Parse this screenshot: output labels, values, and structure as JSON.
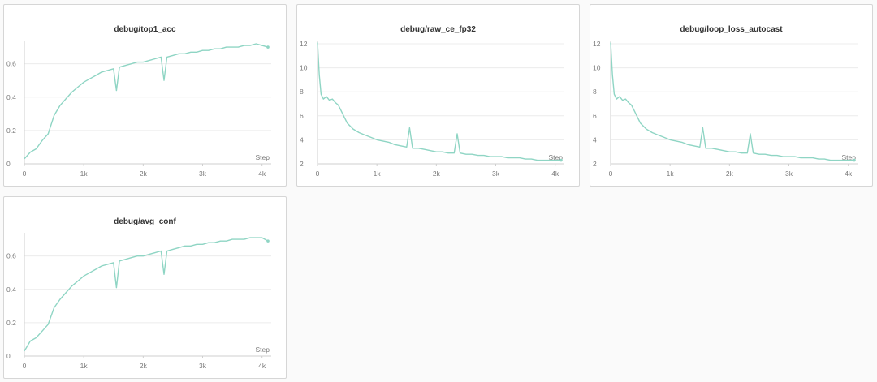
{
  "colors": {
    "series": "#8fd5c4",
    "grid": "#ececec",
    "axis": "#cfcfcf"
  },
  "chart_data": [
    {
      "type": "line",
      "title": "debug/top1_acc",
      "xlabel": "Step",
      "ylabel": "",
      "xlim": [
        0,
        4100
      ],
      "ylim": [
        0,
        0.72
      ],
      "xticks": [
        0,
        1000,
        2000,
        3000,
        4000
      ],
      "xtick_labels": [
        "0",
        "1k",
        "2k",
        "3k",
        "4k"
      ],
      "yticks": [
        0,
        0.2,
        0.4,
        0.6
      ],
      "ytick_labels": [
        "0",
        "0.2",
        "0.4",
        "0.6"
      ],
      "grid": true,
      "series": [
        {
          "x": [
            0,
            100,
            200,
            300,
            400,
            500,
            600,
            700,
            800,
            900,
            1000,
            1100,
            1200,
            1300,
            1400,
            1500,
            1550,
            1600,
            1700,
            1800,
            1900,
            2000,
            2100,
            2200,
            2300,
            2350,
            2400,
            2500,
            2600,
            2700,
            2800,
            2900,
            3000,
            3100,
            3200,
            3300,
            3400,
            3500,
            3600,
            3700,
            3800,
            3900,
            4000,
            4100
          ],
          "y": [
            0.03,
            0.07,
            0.09,
            0.14,
            0.18,
            0.29,
            0.35,
            0.39,
            0.43,
            0.46,
            0.49,
            0.51,
            0.53,
            0.55,
            0.56,
            0.57,
            0.44,
            0.58,
            0.59,
            0.6,
            0.61,
            0.61,
            0.62,
            0.63,
            0.64,
            0.5,
            0.64,
            0.65,
            0.66,
            0.66,
            0.67,
            0.67,
            0.68,
            0.68,
            0.69,
            0.69,
            0.7,
            0.7,
            0.7,
            0.71,
            0.71,
            0.72,
            0.71,
            0.7
          ]
        }
      ]
    },
    {
      "type": "line",
      "title": "debug/raw_ce_fp32",
      "xlabel": "Step",
      "ylabel": "",
      "xlim": [
        0,
        4100
      ],
      "ylim": [
        2,
        12
      ],
      "xticks": [
        0,
        1000,
        2000,
        3000,
        4000
      ],
      "xtick_labels": [
        "0",
        "1k",
        "2k",
        "3k",
        "4k"
      ],
      "yticks": [
        2,
        4,
        6,
        8,
        10,
        12
      ],
      "ytick_labels": [
        "2",
        "4",
        "6",
        "8",
        "10",
        "12"
      ],
      "grid": true,
      "series": [
        {
          "x": [
            0,
            30,
            60,
            100,
            150,
            200,
            250,
            300,
            350,
            400,
            450,
            500,
            600,
            700,
            800,
            900,
            1000,
            1100,
            1200,
            1300,
            1400,
            1500,
            1550,
            1600,
            1700,
            1800,
            1900,
            2000,
            2100,
            2200,
            2300,
            2350,
            2400,
            2500,
            2600,
            2700,
            2800,
            2900,
            3000,
            3100,
            3200,
            3300,
            3400,
            3500,
            3600,
            3700,
            3800,
            3900,
            4000,
            4100
          ],
          "y": [
            12.1,
            9.4,
            7.8,
            7.4,
            7.6,
            7.3,
            7.4,
            7.1,
            6.9,
            6.4,
            5.9,
            5.4,
            4.9,
            4.6,
            4.4,
            4.2,
            4.0,
            3.9,
            3.8,
            3.6,
            3.5,
            3.4,
            5.0,
            3.3,
            3.3,
            3.2,
            3.1,
            3.0,
            3.0,
            2.9,
            2.9,
            4.5,
            2.9,
            2.8,
            2.8,
            2.7,
            2.7,
            2.6,
            2.6,
            2.6,
            2.5,
            2.5,
            2.5,
            2.4,
            2.4,
            2.3,
            2.3,
            2.3,
            2.3,
            2.3
          ]
        }
      ]
    },
    {
      "type": "line",
      "title": "debug/loop_loss_autocast",
      "xlabel": "Step",
      "ylabel": "",
      "xlim": [
        0,
        4100
      ],
      "ylim": [
        2,
        12
      ],
      "xticks": [
        0,
        1000,
        2000,
        3000,
        4000
      ],
      "xtick_labels": [
        "0",
        "1k",
        "2k",
        "3k",
        "4k"
      ],
      "yticks": [
        2,
        4,
        6,
        8,
        10,
        12
      ],
      "ytick_labels": [
        "2",
        "4",
        "6",
        "8",
        "10",
        "12"
      ],
      "grid": true,
      "series": [
        {
          "x": [
            0,
            30,
            60,
            100,
            150,
            200,
            250,
            300,
            350,
            400,
            450,
            500,
            600,
            700,
            800,
            900,
            1000,
            1100,
            1200,
            1300,
            1400,
            1500,
            1550,
            1600,
            1700,
            1800,
            1900,
            2000,
            2100,
            2200,
            2300,
            2350,
            2400,
            2500,
            2600,
            2700,
            2800,
            2900,
            3000,
            3100,
            3200,
            3300,
            3400,
            3500,
            3600,
            3700,
            3800,
            3900,
            4000,
            4100
          ],
          "y": [
            12.1,
            9.4,
            7.8,
            7.4,
            7.6,
            7.3,
            7.4,
            7.1,
            6.9,
            6.4,
            5.9,
            5.4,
            4.9,
            4.6,
            4.4,
            4.2,
            4.0,
            3.9,
            3.8,
            3.6,
            3.5,
            3.4,
            5.0,
            3.3,
            3.3,
            3.2,
            3.1,
            3.0,
            3.0,
            2.9,
            2.9,
            4.5,
            2.9,
            2.8,
            2.8,
            2.7,
            2.7,
            2.6,
            2.6,
            2.6,
            2.5,
            2.5,
            2.5,
            2.4,
            2.4,
            2.3,
            2.3,
            2.3,
            2.3,
            2.3
          ]
        }
      ]
    },
    {
      "type": "line",
      "title": "debug/avg_conf",
      "xlabel": "Step",
      "ylabel": "",
      "xlim": [
        0,
        4100
      ],
      "ylim": [
        0,
        0.72
      ],
      "xticks": [
        0,
        1000,
        2000,
        3000,
        4000
      ],
      "xtick_labels": [
        "0",
        "1k",
        "2k",
        "3k",
        "4k"
      ],
      "yticks": [
        0,
        0.2,
        0.4,
        0.6
      ],
      "ytick_labels": [
        "0",
        "0.2",
        "0.4",
        "0.6"
      ],
      "grid": true,
      "series": [
        {
          "x": [
            0,
            100,
            200,
            300,
            400,
            500,
            600,
            700,
            800,
            900,
            1000,
            1100,
            1200,
            1300,
            1400,
            1500,
            1550,
            1600,
            1700,
            1800,
            1900,
            2000,
            2100,
            2200,
            2300,
            2350,
            2400,
            2500,
            2600,
            2700,
            2800,
            2900,
            3000,
            3100,
            3200,
            3300,
            3400,
            3500,
            3600,
            3700,
            3800,
            3900,
            4000,
            4100
          ],
          "y": [
            0.03,
            0.09,
            0.11,
            0.15,
            0.19,
            0.29,
            0.34,
            0.38,
            0.42,
            0.45,
            0.48,
            0.5,
            0.52,
            0.54,
            0.55,
            0.56,
            0.41,
            0.57,
            0.58,
            0.59,
            0.6,
            0.6,
            0.61,
            0.62,
            0.63,
            0.49,
            0.63,
            0.64,
            0.65,
            0.66,
            0.66,
            0.67,
            0.67,
            0.68,
            0.68,
            0.69,
            0.69,
            0.7,
            0.7,
            0.7,
            0.71,
            0.71,
            0.71,
            0.69
          ]
        }
      ]
    }
  ]
}
